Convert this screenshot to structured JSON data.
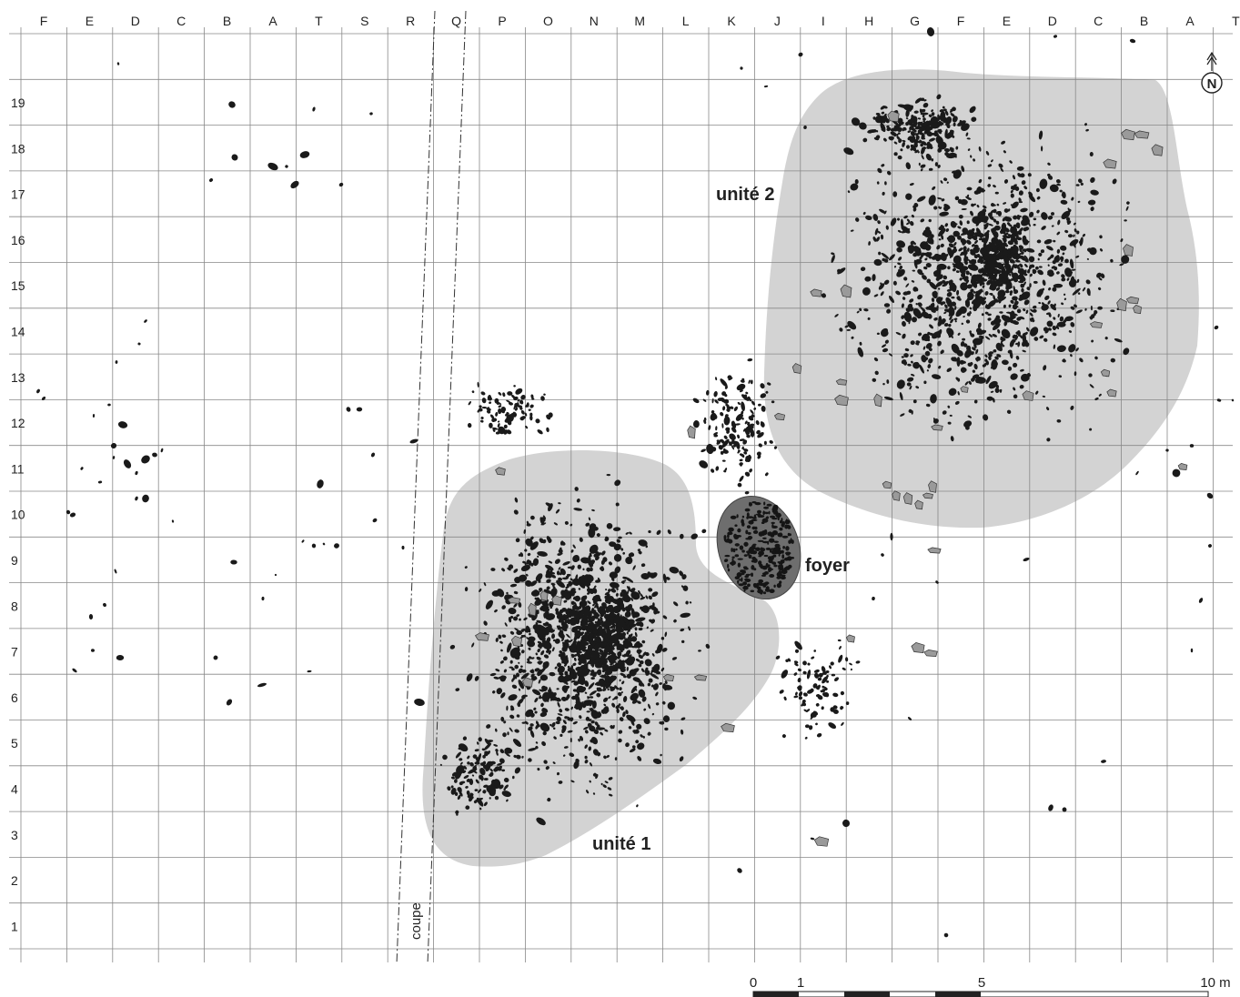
{
  "grid": {
    "columns": [
      "F",
      "E",
      "D",
      "C",
      "B",
      "A",
      "T",
      "S",
      "R",
      "Q",
      "P",
      "O",
      "N",
      "M",
      "L",
      "K",
      "J",
      "I",
      "H",
      "G",
      "F",
      "E",
      "D",
      "C",
      "B",
      "A",
      "T"
    ],
    "rows": [
      "19",
      "18",
      "17",
      "16",
      "15",
      "14",
      "13",
      "12",
      "11",
      "10",
      "9",
      "8",
      "7",
      "6",
      "5",
      "4",
      "3",
      "2",
      "1"
    ]
  },
  "labels": {
    "unite1": "unité 1",
    "unite2": "unité 2",
    "foyer": "foyer",
    "coupe": "coupe"
  },
  "north": {
    "letter": "N"
  },
  "scale": {
    "ticks": [
      "0",
      "1",
      "5",
      "10 m"
    ]
  },
  "colors": {
    "zone_fill": "#d3d3d3",
    "hearth_fill": "#6e6e6e",
    "piece": "#1a1a1a",
    "grid": "#888888"
  }
}
